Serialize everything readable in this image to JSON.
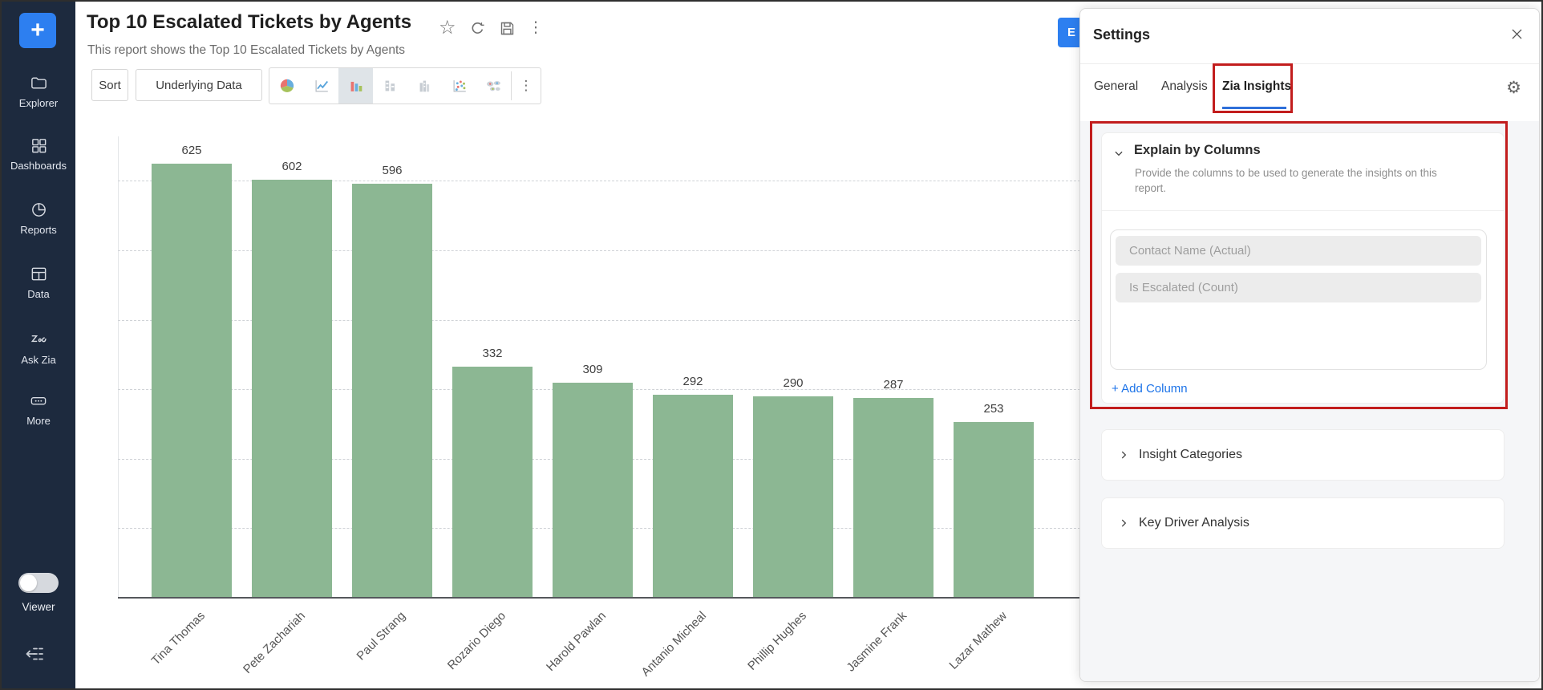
{
  "app": {
    "sidebar": {
      "plus_label": "+",
      "items": [
        {
          "label": "Explorer"
        },
        {
          "label": "Dashboards"
        },
        {
          "label": "Reports"
        },
        {
          "label": "Data"
        },
        {
          "label": "Ask Zia"
        },
        {
          "label": "More"
        }
      ],
      "viewer_label": "Viewer"
    },
    "header": {
      "title": "Top 10 Escalated Tickets by Agents",
      "subtitle": "This report shows the Top 10 Escalated Tickets by Agents"
    },
    "toolbar": {
      "sort_label": "Sort",
      "underlying_label": "Underlying Data"
    },
    "export_button": {
      "label": "E"
    },
    "icons": {
      "star": "☆",
      "kebab": "⋮",
      "gear": "⚙"
    },
    "settings": {
      "title": "Settings",
      "tabs": [
        {
          "label": "General",
          "active": false
        },
        {
          "label": "Analysis",
          "active": false
        },
        {
          "label": "Zia Insights",
          "active": true
        }
      ],
      "explain": {
        "title": "Explain by Columns",
        "description": "Provide the columns to be used to generate the insights on this report.",
        "columns": [
          "Contact Name (Actual)",
          "Is Escalated (Count)"
        ],
        "add_column_label": "+ Add Column"
      },
      "sections": [
        {
          "label": "Insight Categories"
        },
        {
          "label": "Key Driver Analysis"
        }
      ]
    },
    "colors": {
      "bar_green": "#8cb793",
      "sidebar_navy": "#1d2a3e",
      "accent_blue": "#2d7ff0",
      "annotation_red": "#c21d1d",
      "link_blue": "#1c73e8",
      "active_tab_underline": "#2e6fd9"
    }
  },
  "chart_data": {
    "type": "bar",
    "title": "Top 10 Escalated Tickets by Agents",
    "categories": [
      "Tina Thomas",
      "Pete Zachariah",
      "Paul Strang",
      "Rozario Diego",
      "Harold Pawlan",
      "Antanio Micheal",
      "Phillip Hughes",
      "Jasmine Frank",
      "Lazar Mathew"
    ],
    "values": [
      625,
      602,
      596,
      332,
      309,
      292,
      290,
      287,
      253
    ],
    "bar_color": "#8cb793",
    "ylim": [
      0,
      700
    ],
    "gridline_step": 100,
    "grid_style": "dashed",
    "data_labels": true,
    "x_tick_rotation": -45,
    "xlabel": "",
    "ylabel": ""
  }
}
